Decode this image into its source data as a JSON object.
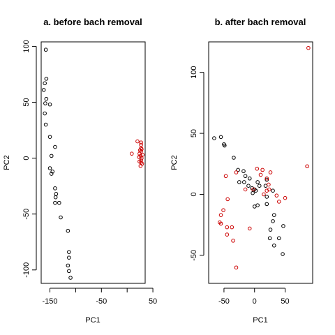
{
  "chart_data": [
    {
      "type": "scatter",
      "title": "a. before bach removal",
      "xlabel": "PC1",
      "ylabel": "PC2",
      "xlim": [
        -167,
        35
      ],
      "ylim": [
        -112,
        104
      ],
      "xticks": [
        -150,
        -50,
        50
      ],
      "xticks_unlabeled": [
        -100,
        0
      ],
      "yticks": [
        -100,
        -50,
        0,
        50,
        100
      ],
      "grid": false,
      "legend": "none",
      "series": [
        {
          "color": "#000000",
          "points": [
            [
              -158,
              97
            ],
            [
              -157,
              71
            ],
            [
              -160,
              67
            ],
            [
              -162,
              61
            ],
            [
              -157,
              53
            ],
            [
              -159,
              49
            ],
            [
              -150,
              48
            ],
            [
              -160,
              40
            ],
            [
              -158,
              30
            ],
            [
              -150,
              19
            ],
            [
              -140,
              10
            ],
            [
              -150,
              -9
            ],
            [
              -147,
              2
            ],
            [
              -145,
              -12
            ],
            [
              -147,
              -14
            ],
            [
              -140,
              -27
            ],
            [
              -138,
              -32
            ],
            [
              -139,
              -35
            ],
            [
              -140,
              -40
            ],
            [
              -132,
              -40
            ],
            [
              -129,
              -53
            ],
            [
              -115,
              -65
            ],
            [
              -113,
              -84
            ],
            [
              -113,
              -89
            ],
            [
              -115,
              -96
            ],
            [
              -113,
              -101
            ],
            [
              -110,
              -107
            ]
          ]
        },
        {
          "color": "#cc0000",
          "points": [
            [
              20,
              15
            ],
            [
              27,
              14
            ],
            [
              27,
              12
            ],
            [
              27,
              9
            ],
            [
              28,
              8
            ],
            [
              25,
              7
            ],
            [
              27,
              6
            ],
            [
              24,
              4
            ],
            [
              9,
              4
            ],
            [
              30,
              3
            ],
            [
              26,
              2
            ],
            [
              23,
              1
            ],
            [
              28,
              0
            ],
            [
              27,
              -2
            ],
            [
              24,
              -3
            ],
            [
              27,
              -4
            ],
            [
              29,
              -5
            ],
            [
              26,
              -7
            ]
          ]
        }
      ]
    },
    {
      "type": "scatter",
      "title": "b. after bach removal",
      "xlabel": "PC1",
      "ylabel": "PC2",
      "xlim": [
        -75,
        95
      ],
      "ylim": [
        -73,
        125
      ],
      "xticks": [
        -50,
        0,
        50
      ],
      "yticks": [
        -50,
        0,
        50,
        100
      ],
      "grid": false,
      "legend": "none",
      "series": [
        {
          "color": "#000000",
          "points": [
            [
              -66,
              46
            ],
            [
              -55,
              47
            ],
            [
              -50,
              41
            ],
            [
              -49,
              40
            ],
            [
              -34,
              30
            ],
            [
              -27,
              20
            ],
            [
              -18,
              19
            ],
            [
              -25,
              10
            ],
            [
              -15,
              15
            ],
            [
              -17,
              10
            ],
            [
              -8,
              13
            ],
            [
              -10,
              7
            ],
            [
              -4,
              5
            ],
            [
              0,
              4
            ],
            [
              5,
              10
            ],
            [
              8,
              7
            ],
            [
              2,
              3
            ],
            [
              20,
              12
            ],
            [
              18,
              7
            ],
            [
              30,
              3
            ],
            [
              20,
              -2
            ],
            [
              0,
              -10
            ],
            [
              5,
              -9
            ],
            [
              20,
              -8
            ],
            [
              26,
              -29
            ],
            [
              32,
              -17
            ],
            [
              30,
              -22
            ],
            [
              25,
              -36
            ],
            [
              32,
              -42
            ],
            [
              40,
              -36
            ],
            [
              47,
              -26
            ],
            [
              46,
              -49
            ],
            [
              -3,
              1
            ]
          ]
        },
        {
          "color": "#cc0000",
          "points": [
            [
              88,
              120
            ],
            [
              -30,
              18
            ],
            [
              -47,
              15
            ],
            [
              -15,
              4
            ],
            [
              4,
              21
            ],
            [
              -2,
              4
            ],
            [
              13,
              20
            ],
            [
              10,
              16
            ],
            [
              26,
              18
            ],
            [
              20,
              13
            ],
            [
              23,
              8
            ],
            [
              24,
              4
            ],
            [
              20,
              3
            ],
            [
              15,
              0
            ],
            [
              36,
              -1
            ],
            [
              50,
              -3
            ],
            [
              40,
              -6
            ],
            [
              86,
              23
            ],
            [
              -44,
              -4
            ],
            [
              -51,
              -13
            ],
            [
              -55,
              -17
            ],
            [
              -57,
              -23
            ],
            [
              -55,
              -24
            ],
            [
              -45,
              -27
            ],
            [
              -37,
              -27
            ],
            [
              -45,
              -33
            ],
            [
              -35,
              -38
            ],
            [
              -8,
              -28
            ],
            [
              -30,
              -60
            ]
          ]
        }
      ]
    }
  ]
}
